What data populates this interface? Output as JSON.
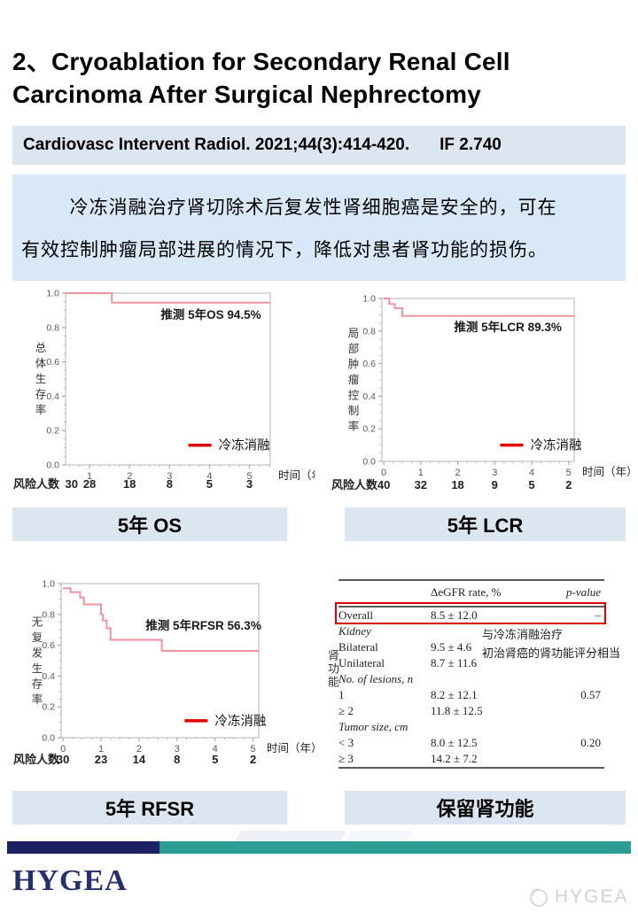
{
  "title": {
    "line1": "2、Cryoablation for Secondary Renal Cell",
    "line2": "Carcinoma After Surgical Nephrectomy"
  },
  "citation": {
    "journal": "Cardiovasc Intervent Radiol. 2021;44(3):414-420.",
    "impact_factor": "IF 2.740"
  },
  "summary": {
    "line1": "冷冻消融治疗肾切除术后复发性肾细胞癌是安全的，可在",
    "line2": "有效控制肿瘤局部进展的情况下，降低对患者肾功能的损伤。"
  },
  "captions": [
    "5年 OS",
    "5年 LCR",
    "5年 RFSR",
    "保留肾功能"
  ],
  "colors": {
    "panel_blue": "#dce6f1",
    "summary_blue": "#d9e8f6",
    "curve_pink": "#f0939e",
    "legend_red": "#e00000",
    "navy": "#1e2064",
    "teal": "#2b9e94",
    "highlight_red": "#e00000"
  },
  "chart_data": [
    {
      "type": "line",
      "style": "kaplan-meier-step",
      "panel_caption": "5年 OS",
      "ylabel": "总体生存率",
      "xlabel": "时间（年）",
      "xlim": [
        0.4,
        5.52
      ],
      "ylim": [
        0,
        1
      ],
      "xticks": [
        1,
        2,
        3,
        4,
        5
      ],
      "yticks": [
        0.0,
        0.2,
        0.4,
        0.6,
        0.8,
        1.0
      ],
      "annotation": "推测 5年OS 94.5%",
      "series": [
        {
          "name": "冷冻消融",
          "steps": [
            [
              0.4,
              1.0
            ],
            [
              1.56,
              0.945
            ],
            [
              5.52,
              0.945
            ]
          ]
        }
      ],
      "risk_table": {
        "label": "风险人数",
        "x": [
          0.55,
          1,
          2,
          3,
          4,
          5
        ],
        "values": [
          30,
          28,
          18,
          8,
          5,
          3
        ]
      }
    },
    {
      "type": "line",
      "style": "kaplan-meier-step",
      "panel_caption": "5年 LCR",
      "ylabel": "局部肿瘤控制率",
      "xlabel": "时间（年）",
      "xlim": [
        -0.05,
        5.15
      ],
      "ylim": [
        0,
        1
      ],
      "xticks": [
        0,
        1,
        2,
        3,
        4,
        5
      ],
      "yticks": [
        0.0,
        0.2,
        0.4,
        0.6,
        0.8,
        1.0
      ],
      "annotation": "推测 5年LCR 89.3%",
      "series": [
        {
          "name": "冷冻消融",
          "steps": [
            [
              0,
              1.0
            ],
            [
              0.15,
              0.965
            ],
            [
              0.3,
              0.94
            ],
            [
              0.5,
              0.893
            ],
            [
              5.15,
              0.893
            ]
          ]
        }
      ],
      "risk_table": {
        "label": "风险人数",
        "x": [
          0,
          1,
          2,
          3,
          4,
          5
        ],
        "values": [
          40,
          32,
          18,
          9,
          5,
          2
        ]
      }
    },
    {
      "type": "line",
      "style": "kaplan-meier-step",
      "panel_caption": "5年 RFSR",
      "ylabel": "无复发生存率",
      "xlabel": "时间（年）",
      "xlim": [
        -0.05,
        5.15
      ],
      "ylim": [
        0,
        1
      ],
      "xticks": [
        0,
        1,
        2,
        3,
        4,
        5
      ],
      "yticks": [
        0.0,
        0.2,
        0.4,
        0.6,
        0.8,
        1.0
      ],
      "annotation": "推测 5年RFSR 56.3%",
      "series": [
        {
          "name": "冷冻消融",
          "steps": [
            [
              0,
              0.97
            ],
            [
              0.2,
              0.945
            ],
            [
              0.45,
              0.91
            ],
            [
              0.55,
              0.865
            ],
            [
              1.0,
              0.8
            ],
            [
              1.05,
              0.76
            ],
            [
              1.15,
              0.71
            ],
            [
              1.25,
              0.635
            ],
            [
              2.6,
              0.563
            ],
            [
              5.15,
              0.563
            ]
          ]
        }
      ],
      "risk_table": {
        "label": "风险人数",
        "x": [
          0,
          1,
          2,
          3,
          4,
          5
        ],
        "values": [
          30,
          23,
          14,
          8,
          5,
          2
        ]
      }
    },
    {
      "type": "table",
      "panel_caption": "保留肾功能",
      "side_label": "肾功能",
      "columns": [
        "",
        "ΔeGFR rate, %",
        "p-value"
      ],
      "rows": [
        {
          "label": "Overall",
          "value": "8.5 ± 12.0",
          "p": "–",
          "highlight": true
        },
        {
          "label": "Kidney",
          "italic": true
        },
        {
          "label": "Bilateral",
          "value": "9.5 ± 4.6"
        },
        {
          "label": "Unilateral",
          "value": "8.7 ± 11.6"
        },
        {
          "label": "No. of lesions, n",
          "italic": true
        },
        {
          "label": "1",
          "value": "8.2 ± 12.1",
          "p": "0.57"
        },
        {
          "label": "≥ 2",
          "value": "11.8 ± 12.5"
        },
        {
          "label": "Tumor size, cm",
          "italic": true
        },
        {
          "label": "< 3",
          "value": "8.0 ± 12.5",
          "p": "0.20"
        },
        {
          "label": "≥ 3",
          "value": "14.2 ± 7.2"
        }
      ],
      "annotation_lines": [
        "与冷冻消融治疗",
        "初治肾癌的肾功能评分相当"
      ]
    }
  ],
  "footer": {
    "logo_text": "HYGEA",
    "watermark_text": "HYGEA"
  }
}
